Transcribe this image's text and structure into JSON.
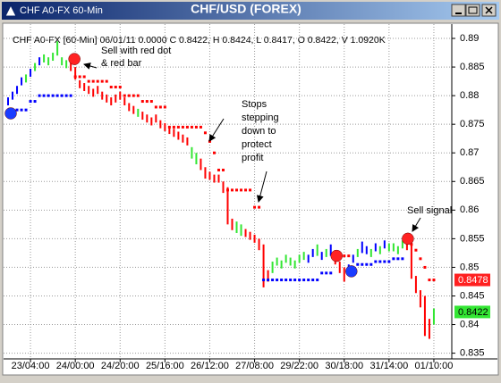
{
  "window": {
    "title": "CHF A0-FX 60-Min"
  },
  "chart_data": {
    "type": "ohlc",
    "title": "CHF/USD (FOREX)",
    "info": "CHF A0-FX [60-Min] 06/01/11  0.0000 C 0.8422, H 0.8424, L 0.8417, O 0.8422, V 1.0920K",
    "xlim": [
      0,
      100
    ],
    "xticks": [
      {
        "value": 6,
        "label": "23/04:00"
      },
      {
        "value": 16,
        "label": "24/00:00"
      },
      {
        "value": 26,
        "label": "24/20:00"
      },
      {
        "value": 36,
        "label": "25/16:00"
      },
      {
        "value": 46,
        "label": "26/12:00"
      },
      {
        "value": 56,
        "label": "27/08:00"
      },
      {
        "value": 66,
        "label": "29/22:00"
      },
      {
        "value": 76,
        "label": "30/18:00"
      },
      {
        "value": 86,
        "label": "31/14:00"
      },
      {
        "value": 96,
        "label": "01/10:00"
      }
    ],
    "ylim": [
      0.834,
      0.8925
    ],
    "yticks": [
      0.835,
      0.84,
      0.845,
      0.85,
      0.855,
      0.86,
      0.865,
      0.87,
      0.875,
      0.88,
      0.885,
      0.89
    ],
    "grid": true,
    "palette": {
      "g": "#33e633",
      "b": "#0000ff",
      "r": "#ff0000"
    },
    "x": [
      1,
      2,
      3,
      4,
      5,
      6,
      7,
      8,
      9,
      10,
      11,
      12,
      13,
      14,
      15,
      16,
      17,
      18,
      19,
      20,
      21,
      22,
      23,
      24,
      25,
      26,
      27,
      28,
      29,
      30,
      31,
      32,
      33,
      34,
      35,
      36,
      37,
      38,
      39,
      40,
      41,
      42,
      43,
      44,
      45,
      46,
      47,
      48,
      49,
      50,
      51,
      52,
      53,
      54,
      55,
      56,
      57,
      58,
      59,
      60,
      61,
      62,
      63,
      64,
      65,
      66,
      67,
      68,
      69,
      70,
      71,
      72,
      73,
      74,
      75,
      76,
      77,
      78,
      79,
      80,
      81,
      82,
      83,
      84,
      85,
      86,
      87,
      88,
      89,
      90,
      91,
      92,
      93,
      94,
      95,
      96
    ],
    "bars": {
      "high": [
        0.8797,
        0.8807,
        0.8817,
        0.8832,
        0.8837,
        0.8847,
        0.8857,
        0.8867,
        0.8872,
        0.8867,
        0.8875,
        0.8895,
        0.8867,
        0.8862,
        0.8865,
        0.885,
        0.8827,
        0.8822,
        0.8817,
        0.8812,
        0.8817,
        0.8807,
        0.8802,
        0.8797,
        0.8802,
        0.8807,
        0.8797,
        0.8787,
        0.8782,
        0.8777,
        0.8772,
        0.8767,
        0.8762,
        0.8767,
        0.8757,
        0.8752,
        0.8747,
        0.8742,
        0.8737,
        0.8732,
        0.8727,
        0.871,
        0.87,
        0.869,
        0.8675,
        0.8667,
        0.8662,
        0.8662,
        0.865,
        0.864,
        0.8585,
        0.858,
        0.8575,
        0.8567,
        0.8562,
        0.8557,
        0.855,
        0.854,
        0.8495,
        0.851,
        0.8517,
        0.8512,
        0.8522,
        0.8517,
        0.8512,
        0.8522,
        0.8527,
        0.8522,
        0.8532,
        0.854,
        0.8527,
        0.8532,
        0.854,
        0.853,
        0.851,
        0.85,
        0.8505,
        0.8522,
        0.8532,
        0.8545,
        0.8537,
        0.8532,
        0.8542,
        0.8537,
        0.8547,
        0.8542,
        0.8542,
        0.8537,
        0.8547,
        0.855,
        0.8545,
        0.8485,
        0.846,
        0.845,
        0.841,
        0.8428
      ],
      "low": [
        0.8783,
        0.8793,
        0.8803,
        0.8818,
        0.8823,
        0.8833,
        0.8843,
        0.8853,
        0.8858,
        0.8853,
        0.8861,
        0.887,
        0.8853,
        0.8848,
        0.8843,
        0.8828,
        0.8813,
        0.8808,
        0.8803,
        0.8798,
        0.8803,
        0.8793,
        0.8788,
        0.8783,
        0.8788,
        0.8793,
        0.8783,
        0.8773,
        0.8768,
        0.8763,
        0.8758,
        0.8753,
        0.8748,
        0.8753,
        0.8743,
        0.8738,
        0.8733,
        0.8728,
        0.8723,
        0.8718,
        0.8713,
        0.869,
        0.868,
        0.867,
        0.8655,
        0.8653,
        0.8648,
        0.8648,
        0.863,
        0.8575,
        0.8565,
        0.856,
        0.8555,
        0.8553,
        0.8548,
        0.8543,
        0.853,
        0.8465,
        0.8475,
        0.849,
        0.8503,
        0.8498,
        0.8508,
        0.8503,
        0.8498,
        0.8508,
        0.8513,
        0.8508,
        0.8518,
        0.852,
        0.8513,
        0.8518,
        0.852,
        0.8505,
        0.849,
        0.8475,
        0.8485,
        0.8508,
        0.8518,
        0.8525,
        0.8523,
        0.8518,
        0.8528,
        0.8523,
        0.8533,
        0.8528,
        0.8528,
        0.8523,
        0.8533,
        0.853,
        0.848,
        0.8455,
        0.843,
        0.838,
        0.8375,
        0.84
      ],
      "colors": [
        "b",
        "b",
        "b",
        "b",
        "g",
        "b",
        "g",
        "b",
        "g",
        "g",
        "g",
        "g",
        "g",
        "g",
        "r",
        "r",
        "r",
        "r",
        "r",
        "r",
        "r",
        "r",
        "r",
        "r",
        "r",
        "r",
        "r",
        "r",
        "r",
        "g",
        "r",
        "r",
        "r",
        "r",
        "r",
        "r",
        "r",
        "r",
        "r",
        "r",
        "r",
        "g",
        "g",
        "r",
        "r",
        "r",
        "r",
        "r",
        "r",
        "r",
        "r",
        "g",
        "g",
        "r",
        "r",
        "r",
        "r",
        "r",
        "r",
        "g",
        "g",
        "g",
        "g",
        "g",
        "g",
        "g",
        "g",
        "b",
        "b",
        "g",
        "b",
        "g",
        "b",
        "r",
        "r",
        "r",
        "b",
        "b",
        "g",
        "b",
        "b",
        "g",
        "b",
        "g",
        "b",
        "g",
        "g",
        "g",
        "g",
        "r",
        "r",
        "r",
        "r",
        "r",
        "r",
        "g"
      ]
    },
    "blue_stops": {
      "color": "#0000ff",
      "values": [
        0.8765,
        0.8765,
        0.8775,
        0.8775,
        0.8775,
        0.879,
        0.879,
        0.88,
        0.88,
        0.88,
        0.88,
        0.88,
        0.88,
        0.88,
        0.88,
        null,
        null,
        null,
        null,
        null,
        null,
        null,
        null,
        null,
        null,
        null,
        null,
        null,
        null,
        null,
        null,
        null,
        null,
        null,
        null,
        null,
        null,
        null,
        null,
        null,
        null,
        null,
        null,
        null,
        null,
        null,
        null,
        null,
        null,
        null,
        null,
        null,
        null,
        null,
        null,
        null,
        null,
        0.8478,
        0.8478,
        0.8478,
        0.8478,
        0.8478,
        0.8478,
        0.8478,
        0.8478,
        0.8478,
        0.8478,
        0.8478,
        0.8478,
        0.8478,
        0.849,
        0.849,
        0.849,
        null,
        null,
        null,
        null,
        0.8495,
        0.8505,
        0.8505,
        0.8505,
        0.8505,
        0.851,
        0.851,
        0.851,
        0.851,
        0.8515,
        0.8515,
        0.8515,
        null,
        null,
        null,
        null,
        null,
        null,
        null
      ]
    },
    "red_stops": {
      "color": "#ff0000",
      "values": [
        null,
        null,
        null,
        null,
        null,
        null,
        null,
        null,
        null,
        null,
        null,
        null,
        null,
        null,
        null,
        0.8833,
        0.8833,
        0.8833,
        0.8825,
        0.8825,
        0.8825,
        0.8825,
        0.8825,
        0.8815,
        0.8815,
        0.8815,
        0.88,
        0.88,
        0.88,
        0.88,
        0.879,
        0.879,
        0.879,
        0.878,
        0.878,
        0.878,
        0.8745,
        0.8745,
        0.8745,
        0.8745,
        0.8745,
        0.8745,
        0.8745,
        0.8745,
        0.8735,
        0.872,
        0.87,
        0.867,
        0.867,
        0.8635,
        0.8635,
        0.8635,
        0.8635,
        0.8635,
        0.8635,
        0.8605,
        0.8605,
        null,
        null,
        null,
        null,
        null,
        null,
        null,
        null,
        null,
        null,
        null,
        null,
        null,
        null,
        null,
        null,
        0.852,
        0.852,
        0.852,
        0.852,
        null,
        null,
        null,
        null,
        null,
        null,
        null,
        null,
        null,
        null,
        null,
        null,
        0.855,
        0.854,
        0.853,
        0.8515,
        0.85,
        0.8478,
        0.8478
      ]
    },
    "signals": [
      {
        "x": 1.6,
        "y": 0.8769,
        "color": "#1a3cff"
      },
      {
        "x": 15.8,
        "y": 0.8864,
        "color": "#ff2222"
      },
      {
        "x": 74.3,
        "y": 0.852,
        "color": "#ff2222"
      },
      {
        "x": 77.6,
        "y": 0.8493,
        "color": "#1a3cff"
      },
      {
        "x": 90.2,
        "y": 0.855,
        "color": "#ff2222"
      }
    ],
    "price_labels": [
      {
        "value": 0.8478,
        "color": "#ff2020"
      },
      {
        "value": 0.8422,
        "color": "#33e633"
      }
    ],
    "annotations": [
      [
        "Sell with red dot",
        "& red bar"
      ],
      [
        "Stops",
        "stepping",
        "down to",
        "protect",
        "profit"
      ],
      [
        "Sell signal"
      ]
    ]
  }
}
